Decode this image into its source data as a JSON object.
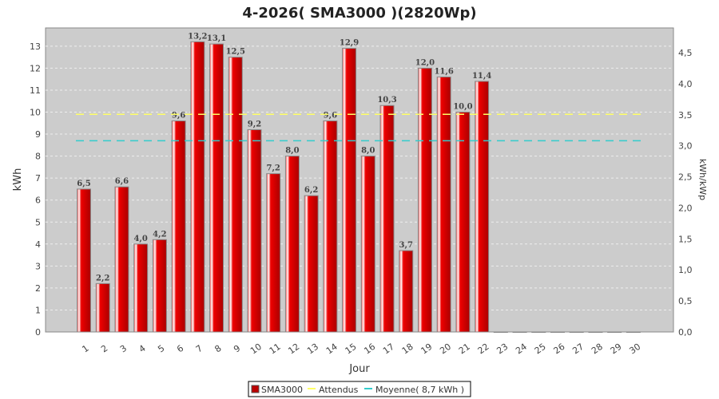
{
  "chart_data": {
    "type": "bar",
    "title": "4-2026( SMA3000 )(2820Wp)",
    "xlabel": "Jour",
    "ylabel": "kWh",
    "y2label": "kWh/kWp",
    "ylim": [
      0,
      13.83
    ],
    "y2lim": [
      0,
      4.9
    ],
    "yticks": [
      0,
      1,
      2,
      3,
      4,
      5,
      6,
      7,
      8,
      9,
      10,
      11,
      12,
      13
    ],
    "y2ticks": [
      "0,0",
      "0,5",
      "1,0",
      "1,5",
      "2,0",
      "2,5",
      "3,0",
      "3,5",
      "4,0",
      "4,5"
    ],
    "categories": [
      "1",
      "2",
      "3",
      "4",
      "5",
      "6",
      "7",
      "8",
      "9",
      "10",
      "11",
      "12",
      "13",
      "14",
      "15",
      "16",
      "17",
      "18",
      "19",
      "20",
      "21",
      "22",
      "23",
      "24",
      "25",
      "26",
      "27",
      "28",
      "29",
      "30"
    ],
    "series": [
      {
        "name": "SMA3000",
        "color": "#cc0000",
        "values": [
          6.5,
          2.2,
          6.6,
          4.0,
          4.2,
          9.6,
          13.2,
          13.1,
          12.5,
          9.2,
          7.2,
          8.0,
          6.2,
          9.6,
          12.9,
          8.0,
          10.3,
          3.7,
          12.0,
          11.6,
          10.0,
          11.4,
          0,
          0,
          0,
          0,
          0,
          0,
          0,
          0
        ],
        "labels": [
          "6,5",
          "2,2",
          "6,6",
          "4,0",
          "4,2",
          "9,6",
          "13,2",
          "13,1",
          "12,5",
          "9,2",
          "7,2",
          "8,0",
          "6,2",
          "9,6",
          "12,9",
          "8,0",
          "10,3",
          "3,7",
          "12,0",
          "11,6",
          "10,0",
          "11,4",
          "",
          "",
          "",
          "",
          "",
          "",
          "",
          ""
        ]
      }
    ],
    "lines": [
      {
        "name": "Attendus",
        "value": 9.9,
        "color": "#ffff66"
      },
      {
        "name": "Moyenne( 8,7 kWh )",
        "value": 8.7,
        "color": "#33cccc"
      }
    ],
    "grid": true,
    "legend": "bottom"
  }
}
